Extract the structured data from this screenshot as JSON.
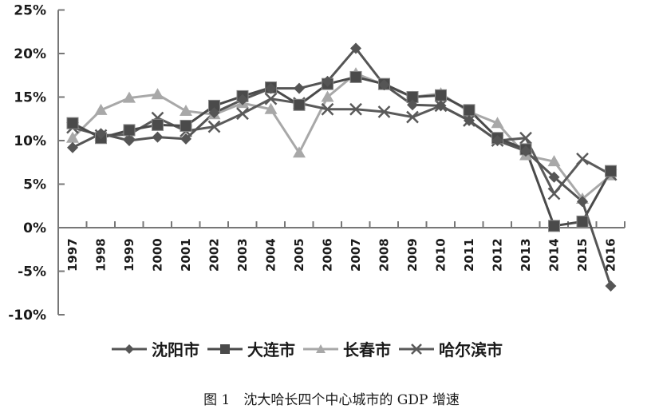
{
  "chart_data": {
    "type": "line",
    "title": "",
    "caption": "图 1　沈大哈长四个中心城市的 GDP 增速",
    "xlabel": "",
    "ylabel": "",
    "ylim": [
      -10,
      25
    ],
    "yticks": [
      "25%",
      "20%",
      "15%",
      "10%",
      "5%",
      "0%",
      "-5%",
      "-10%"
    ],
    "ytick_values": [
      25,
      20,
      15,
      10,
      5,
      0,
      -5,
      -10
    ],
    "grid": false,
    "legend_position": "bottom",
    "categories": [
      "1997",
      "1998",
      "1999",
      "2000",
      "2001",
      "2002",
      "2003",
      "2004",
      "2005",
      "2006",
      "2007",
      "2008",
      "2009",
      "2010",
      "2011",
      "2012",
      "2013",
      "2014",
      "2015",
      "2016"
    ],
    "series": [
      {
        "name": "沈阳市",
        "marker": "diamond",
        "color": "#555555",
        "values": [
          9.2,
          10.8,
          10.0,
          10.4,
          10.2,
          13.2,
          14.7,
          16.0,
          16.0,
          16.8,
          20.6,
          16.4,
          14.1,
          14.0,
          12.3,
          10.0,
          8.8,
          5.8,
          3.0,
          -6.7
        ]
      },
      {
        "name": "大连市",
        "marker": "square",
        "color": "#4a4a4a",
        "values": [
          12.0,
          10.3,
          11.2,
          11.8,
          11.7,
          14.0,
          15.1,
          16.1,
          14.1,
          16.5,
          17.3,
          16.5,
          15.0,
          15.2,
          13.5,
          10.3,
          9.0,
          0.2,
          0.7,
          6.5
        ]
      },
      {
        "name": "长春市",
        "marker": "triangle",
        "color": "#a8a8a8",
        "values": [
          10.3,
          13.5,
          14.9,
          15.3,
          13.4,
          13.0,
          14.3,
          13.6,
          8.6,
          15.0,
          17.7,
          16.4,
          15.0,
          15.4,
          13.3,
          12.0,
          8.3,
          7.6,
          3.3,
          6.0
        ]
      },
      {
        "name": "哈尔滨市",
        "marker": "x",
        "color": "#5a5a5a",
        "values": [
          11.5,
          10.6,
          10.7,
          12.6,
          11.1,
          11.6,
          13.1,
          14.8,
          14.3,
          13.6,
          13.6,
          13.3,
          12.7,
          14.0,
          12.3,
          10.0,
          10.3,
          3.9,
          7.9,
          6.1
        ]
      }
    ]
  }
}
